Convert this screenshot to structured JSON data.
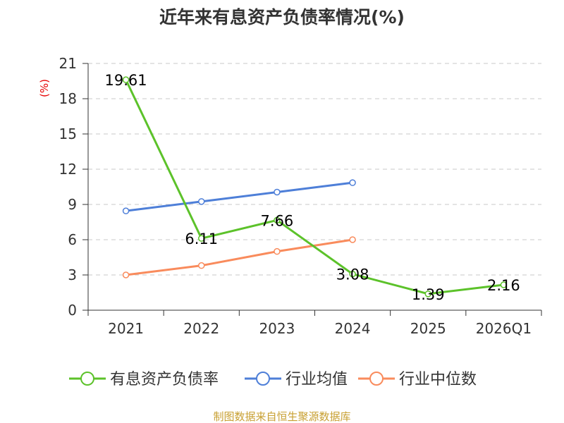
{
  "chart_data": {
    "type": "line",
    "title": "近年来有息资产负债率情况(%)",
    "ylabel": "(%)",
    "xlabel": "",
    "categories": [
      "2021",
      "2022",
      "2023",
      "2024",
      "2025",
      "2026Q1"
    ],
    "ylim": [
      0,
      21
    ],
    "yticks": [
      0,
      3,
      6,
      9,
      12,
      15,
      18,
      21
    ],
    "grid": true,
    "legend_position": "bottom",
    "series": [
      {
        "name": "有息资产负债率",
        "color": "#5cc22a",
        "values": [
          19.61,
          6.11,
          7.66,
          3.08,
          1.39,
          2.16
        ],
        "labels": [
          "19.61",
          "6.11",
          "7.66",
          "3.08",
          "1.39",
          "2.16"
        ]
      },
      {
        "name": "行业均值",
        "color": "#4e7fd8",
        "values": [
          8.45,
          9.25,
          10.05,
          10.85,
          null,
          null
        ]
      },
      {
        "name": "行业中位数",
        "color": "#f98b5c",
        "values": [
          3.0,
          3.8,
          5.0,
          6.0,
          null,
          null
        ]
      }
    ]
  },
  "source_text": "制图数据来自恒生聚源数据库"
}
